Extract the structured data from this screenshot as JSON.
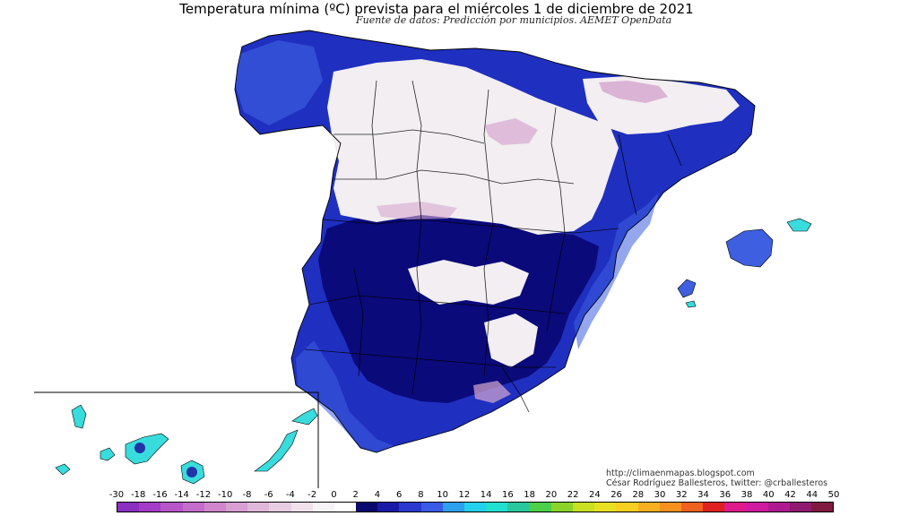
{
  "header": {
    "title": "Temperatura mínima (ºC) prevista para el miércoles 1 de diciembre de 2021",
    "source": "Fuente de datos: Predicción por municipios. AEMET OpenData"
  },
  "credits": {
    "website": "http://climaenmapas.blogspot.com",
    "author": "César Rodríguez Ballesteros, twitter: @crballesteros"
  },
  "legend": {
    "labels": [
      "-30",
      "-18",
      "-16",
      "-14",
      "-12",
      "-10",
      "-8",
      "-6",
      "-4",
      "-2",
      "0",
      "2",
      "4",
      "6",
      "8",
      "10",
      "12",
      "14",
      "16",
      "18",
      "20",
      "22",
      "24",
      "26",
      "28",
      "30",
      "32",
      "34",
      "36",
      "38",
      "40",
      "42",
      "44",
      "50"
    ],
    "colors": [
      "#8a2fc0",
      "#a33cc6",
      "#b855c9",
      "#c46cc9",
      "#cf86cc",
      "#d8a0d2",
      "#e0b8da",
      "#e8cde3",
      "#efe0ec",
      "#f7f2f6",
      "#ffffff",
      "#0a0a6e",
      "#1a1aa8",
      "#2a3ad0",
      "#3a5ae8",
      "#2ea0f0",
      "#22d0f0",
      "#22e0d0",
      "#2ac89c",
      "#4ad04a",
      "#8ad42a",
      "#c8e020",
      "#e8e020",
      "#f8d020",
      "#f8b020",
      "#f89020",
      "#f06020",
      "#e02020",
      "#e01a8a",
      "#d01aa0",
      "#b01a90",
      "#901a70",
      "#801a40"
    ]
  },
  "map": {
    "mainland_colors": {
      "snow_white": "#f2eef1",
      "frost_pink": "#d7a8d0",
      "deep_blue": "#0a0a7a",
      "mid_blue": "#1f2fc0",
      "light_blue": "#3d5fe0"
    },
    "canary_colors": {
      "cyan": "#38dcdc",
      "core": "#2233a8"
    }
  }
}
